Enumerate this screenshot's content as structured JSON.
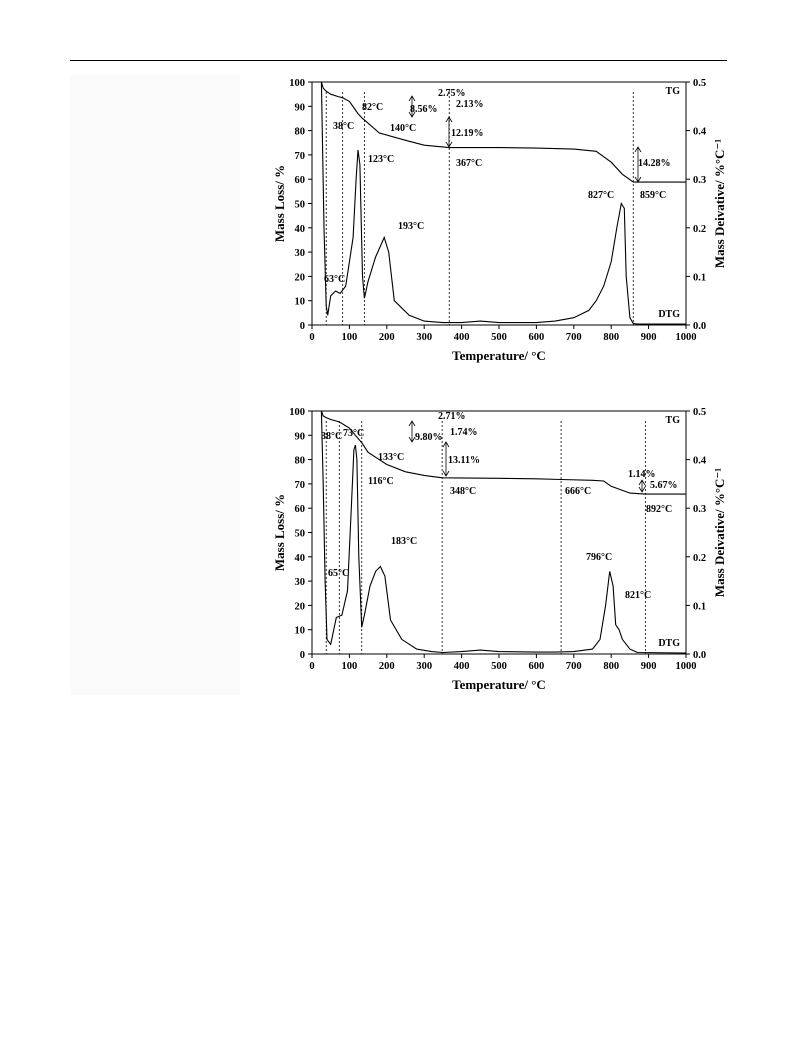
{
  "chart_data": [
    {
      "type": "line",
      "xlabel": "Temperature/ °C",
      "ylabel": "Mass Loss/ %",
      "y2label": "Mass Deivative/ %°C⁻¹",
      "xlim": [
        0,
        1000
      ],
      "ylim": [
        0,
        100
      ],
      "y2lim": [
        0,
        0.5
      ],
      "xticks": [
        "0",
        "100",
        "200",
        "300",
        "400",
        "500",
        "600",
        "700",
        "800",
        "900",
        "1000"
      ],
      "yticks": [
        "0",
        "10",
        "20",
        "30",
        "40",
        "50",
        "60",
        "70",
        "80",
        "90",
        "100"
      ],
      "y2ticks": [
        "0.0",
        "0.1",
        "0.2",
        "0.3",
        "0.4",
        "0.5"
      ],
      "series": [
        {
          "name": "TG",
          "axis": "left",
          "x": [
            25,
            30,
            38,
            50,
            70,
            82,
            100,
            123,
            135,
            140,
            180,
            250,
            300,
            367,
            500,
            600,
            700,
            760,
            800,
            830,
            859,
            900,
            1000
          ],
          "y": [
            100,
            97.5,
            96.2,
            95,
            94,
            93.5,
            92,
            87,
            85,
            84.4,
            79,
            76,
            74,
            73,
            73,
            72.8,
            72.4,
            71.5,
            67,
            62,
            58.8,
            58.8,
            58.8
          ]
        },
        {
          "name": "DTG",
          "axis": "right",
          "x": [
            25,
            32,
            38,
            42,
            50,
            63,
            75,
            90,
            110,
            118,
            123,
            128,
            135,
            140,
            150,
            170,
            193,
            205,
            220,
            260,
            300,
            350,
            400,
            450,
            500,
            600,
            650,
            700,
            740,
            760,
            780,
            800,
            815,
            827,
            835,
            840,
            850,
            859,
            870,
            1000
          ],
          "y": [
            0.5,
            0.2,
            0.04,
            0.02,
            0.06,
            0.07,
            0.065,
            0.08,
            0.18,
            0.3,
            0.36,
            0.33,
            0.1,
            0.055,
            0.09,
            0.14,
            0.18,
            0.15,
            0.05,
            0.02,
            0.008,
            0.005,
            0.005,
            0.008,
            0.005,
            0.005,
            0.008,
            0.015,
            0.03,
            0.05,
            0.08,
            0.13,
            0.2,
            0.25,
            0.24,
            0.1,
            0.015,
            0.003,
            0.002,
            0.002
          ]
        }
      ],
      "annotations": [
        "2.75%",
        "2.13%",
        "82°C",
        "8.56%",
        "38°C",
        "140°C",
        "12.19%",
        "123°C",
        "367°C",
        "14.28%",
        "827°C",
        "859°C",
        "193°C",
        "63°C"
      ],
      "series_labels": [
        "TG",
        "DTG"
      ]
    },
    {
      "type": "line",
      "xlabel": "Temperature/ °C",
      "ylabel": "Mass Loss/ %",
      "y2label": "Mass Deivative/ %°C⁻¹",
      "xlim": [
        0,
        1000
      ],
      "ylim": [
        0,
        100
      ],
      "y2lim": [
        0,
        0.5
      ],
      "xticks": [
        "0",
        "100",
        "200",
        "300",
        "400",
        "500",
        "600",
        "700",
        "800",
        "900",
        "1000"
      ],
      "yticks": [
        "0",
        "10",
        "20",
        "30",
        "40",
        "50",
        "60",
        "70",
        "80",
        "90",
        "100"
      ],
      "y2ticks": [
        "0.0",
        "0.1",
        "0.2",
        "0.3",
        "0.4",
        "0.5"
      ],
      "series": [
        {
          "name": "TG",
          "axis": "left",
          "x": [
            25,
            30,
            38,
            50,
            73,
            100,
            116,
            133,
            150,
            200,
            250,
            300,
            348,
            500,
            600,
            666,
            750,
            780,
            800,
            850,
            892,
            950,
            1000
          ],
          "y": [
            100,
            98,
            97.3,
            96.5,
            95.5,
            93,
            90,
            87,
            83,
            78,
            75,
            73.5,
            72.5,
            72.3,
            72.1,
            71.8,
            71.5,
            71.2,
            69,
            66.2,
            65.8,
            65.8,
            65.8
          ]
        },
        {
          "name": "DTG",
          "axis": "right",
          "x": [
            25,
            30,
            35,
            40,
            50,
            65,
            80,
            95,
            105,
            112,
            116,
            120,
            125,
            133,
            140,
            155,
            170,
            183,
            195,
            210,
            240,
            280,
            320,
            350,
            400,
            450,
            500,
            600,
            650,
            700,
            750,
            770,
            785,
            796,
            805,
            812,
            821,
            830,
            840,
            850,
            870,
            1000
          ],
          "y": [
            0.5,
            0.35,
            0.15,
            0.03,
            0.02,
            0.075,
            0.08,
            0.13,
            0.3,
            0.42,
            0.43,
            0.4,
            0.2,
            0.055,
            0.08,
            0.14,
            0.17,
            0.18,
            0.16,
            0.07,
            0.03,
            0.01,
            0.005,
            0.003,
            0.005,
            0.008,
            0.005,
            0.004,
            0.004,
            0.005,
            0.01,
            0.03,
            0.1,
            0.17,
            0.14,
            0.06,
            0.05,
            0.03,
            0.02,
            0.01,
            0.003,
            0.002
          ]
        }
      ],
      "annotations": [
        "2.71%",
        "1.74%",
        "38°C",
        "73°C",
        "9.80%",
        "133°C",
        "116°C",
        "13.11%",
        "348°C",
        "666°C",
        "1.14%",
        "5.67%",
        "892°C",
        "183°C",
        "65°C",
        "796°C",
        "821°C"
      ],
      "series_labels": [
        "TG",
        "DTG"
      ]
    }
  ]
}
